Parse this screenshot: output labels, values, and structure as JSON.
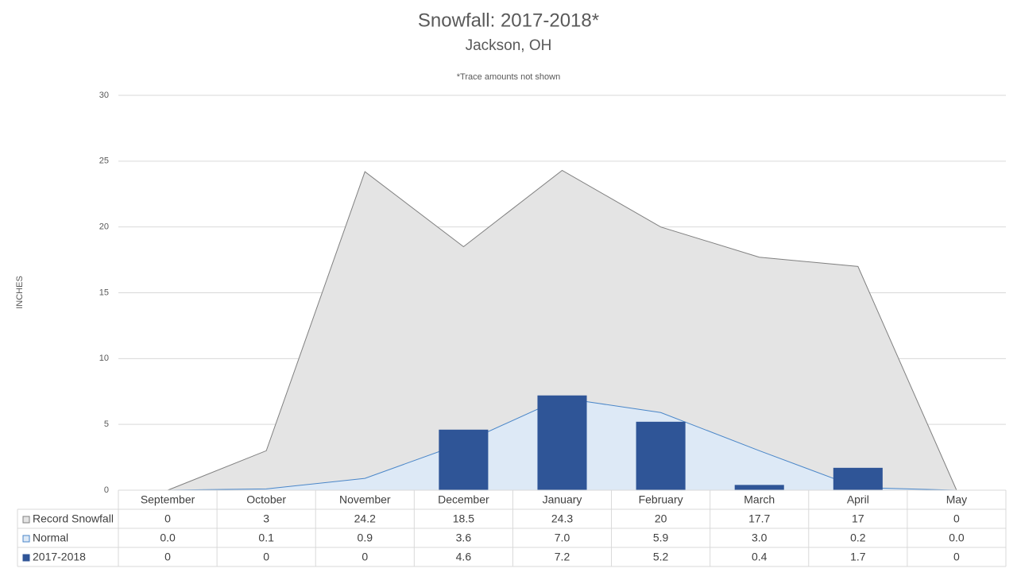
{
  "chart_data": {
    "type": "combo",
    "title": "Snowfall: 2017-2018*",
    "subtitle": "Jackson, OH",
    "note": "*Trace amounts not shown",
    "y_label": "INCHES",
    "categories": [
      "September",
      "October",
      "November",
      "December",
      "January",
      "February",
      "March",
      "April",
      "May"
    ],
    "series": [
      {
        "name": "Record Snowfall",
        "type": "area",
        "color": "#e4e4e4",
        "line_color": "#808080",
        "values": [
          0,
          3,
          24.2,
          18.5,
          24.3,
          20,
          17.7,
          17,
          0
        ]
      },
      {
        "name": "Normal",
        "type": "area",
        "color": "#dde9f6",
        "line_color": "#4a86c8",
        "values": [
          0,
          0.1,
          0.9,
          3.6,
          7,
          5.9,
          3,
          0.2,
          0
        ],
        "value_labels": [
          "0.0",
          "0.1",
          "0.9",
          "3.6",
          "7.0",
          "5.9",
          "3.0",
          "0.2",
          "0.0"
        ]
      },
      {
        "name": "2017-2018",
        "type": "bar",
        "color": "#2f5597",
        "values": [
          0,
          0,
          0,
          4.6,
          7.2,
          5.2,
          0.4,
          1.7,
          0
        ]
      }
    ],
    "ylim": [
      0,
      30
    ],
    "yticks": [
      0,
      5,
      10,
      15,
      20,
      25,
      30
    ],
    "grid": true
  }
}
